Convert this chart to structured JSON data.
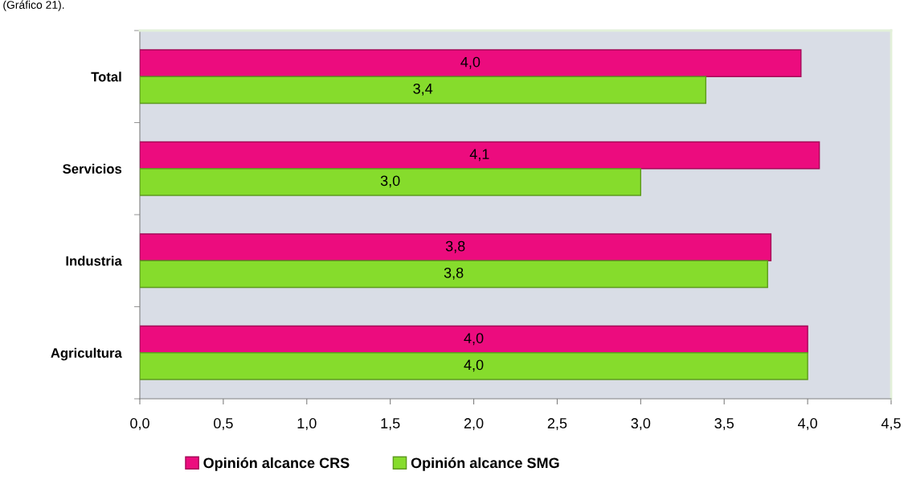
{
  "chart_data": {
    "type": "bar",
    "orientation": "horizontal",
    "annotations": [
      "(Gráfico 21)."
    ],
    "categories": [
      "Total",
      "Servicios",
      "Industria",
      "Agricultura"
    ],
    "series": [
      {
        "name": "Opinión alcance CRS",
        "color": "#ec0c7e",
        "values": [
          3.96,
          4.07,
          3.78,
          4.0
        ],
        "value_labels": [
          "4,0",
          "4,1",
          "3,8",
          "4,0"
        ]
      },
      {
        "name": "Opinión alcance SMG",
        "color": "#86dc2c",
        "values": [
          3.39,
          3.0,
          3.76,
          4.0
        ],
        "value_labels": [
          "3,4",
          "3,0",
          "3,8",
          "4,0"
        ]
      }
    ],
    "xlim": [
      0,
      4.5
    ],
    "xticks": [
      {
        "value": 0,
        "label": "0,0"
      },
      {
        "value": 0.5,
        "label": "0,5"
      },
      {
        "value": 1,
        "label": "1,0"
      },
      {
        "value": 1.5,
        "label": "1,5"
      },
      {
        "value": 2,
        "label": "2,0"
      },
      {
        "value": 2.5,
        "label": "2,5"
      },
      {
        "value": 3,
        "label": "3,0"
      },
      {
        "value": 3.5,
        "label": "3,5"
      },
      {
        "value": 4,
        "label": "4,0"
      },
      {
        "value": 4.5,
        "label": "4,5"
      }
    ],
    "legend": "bottom"
  }
}
